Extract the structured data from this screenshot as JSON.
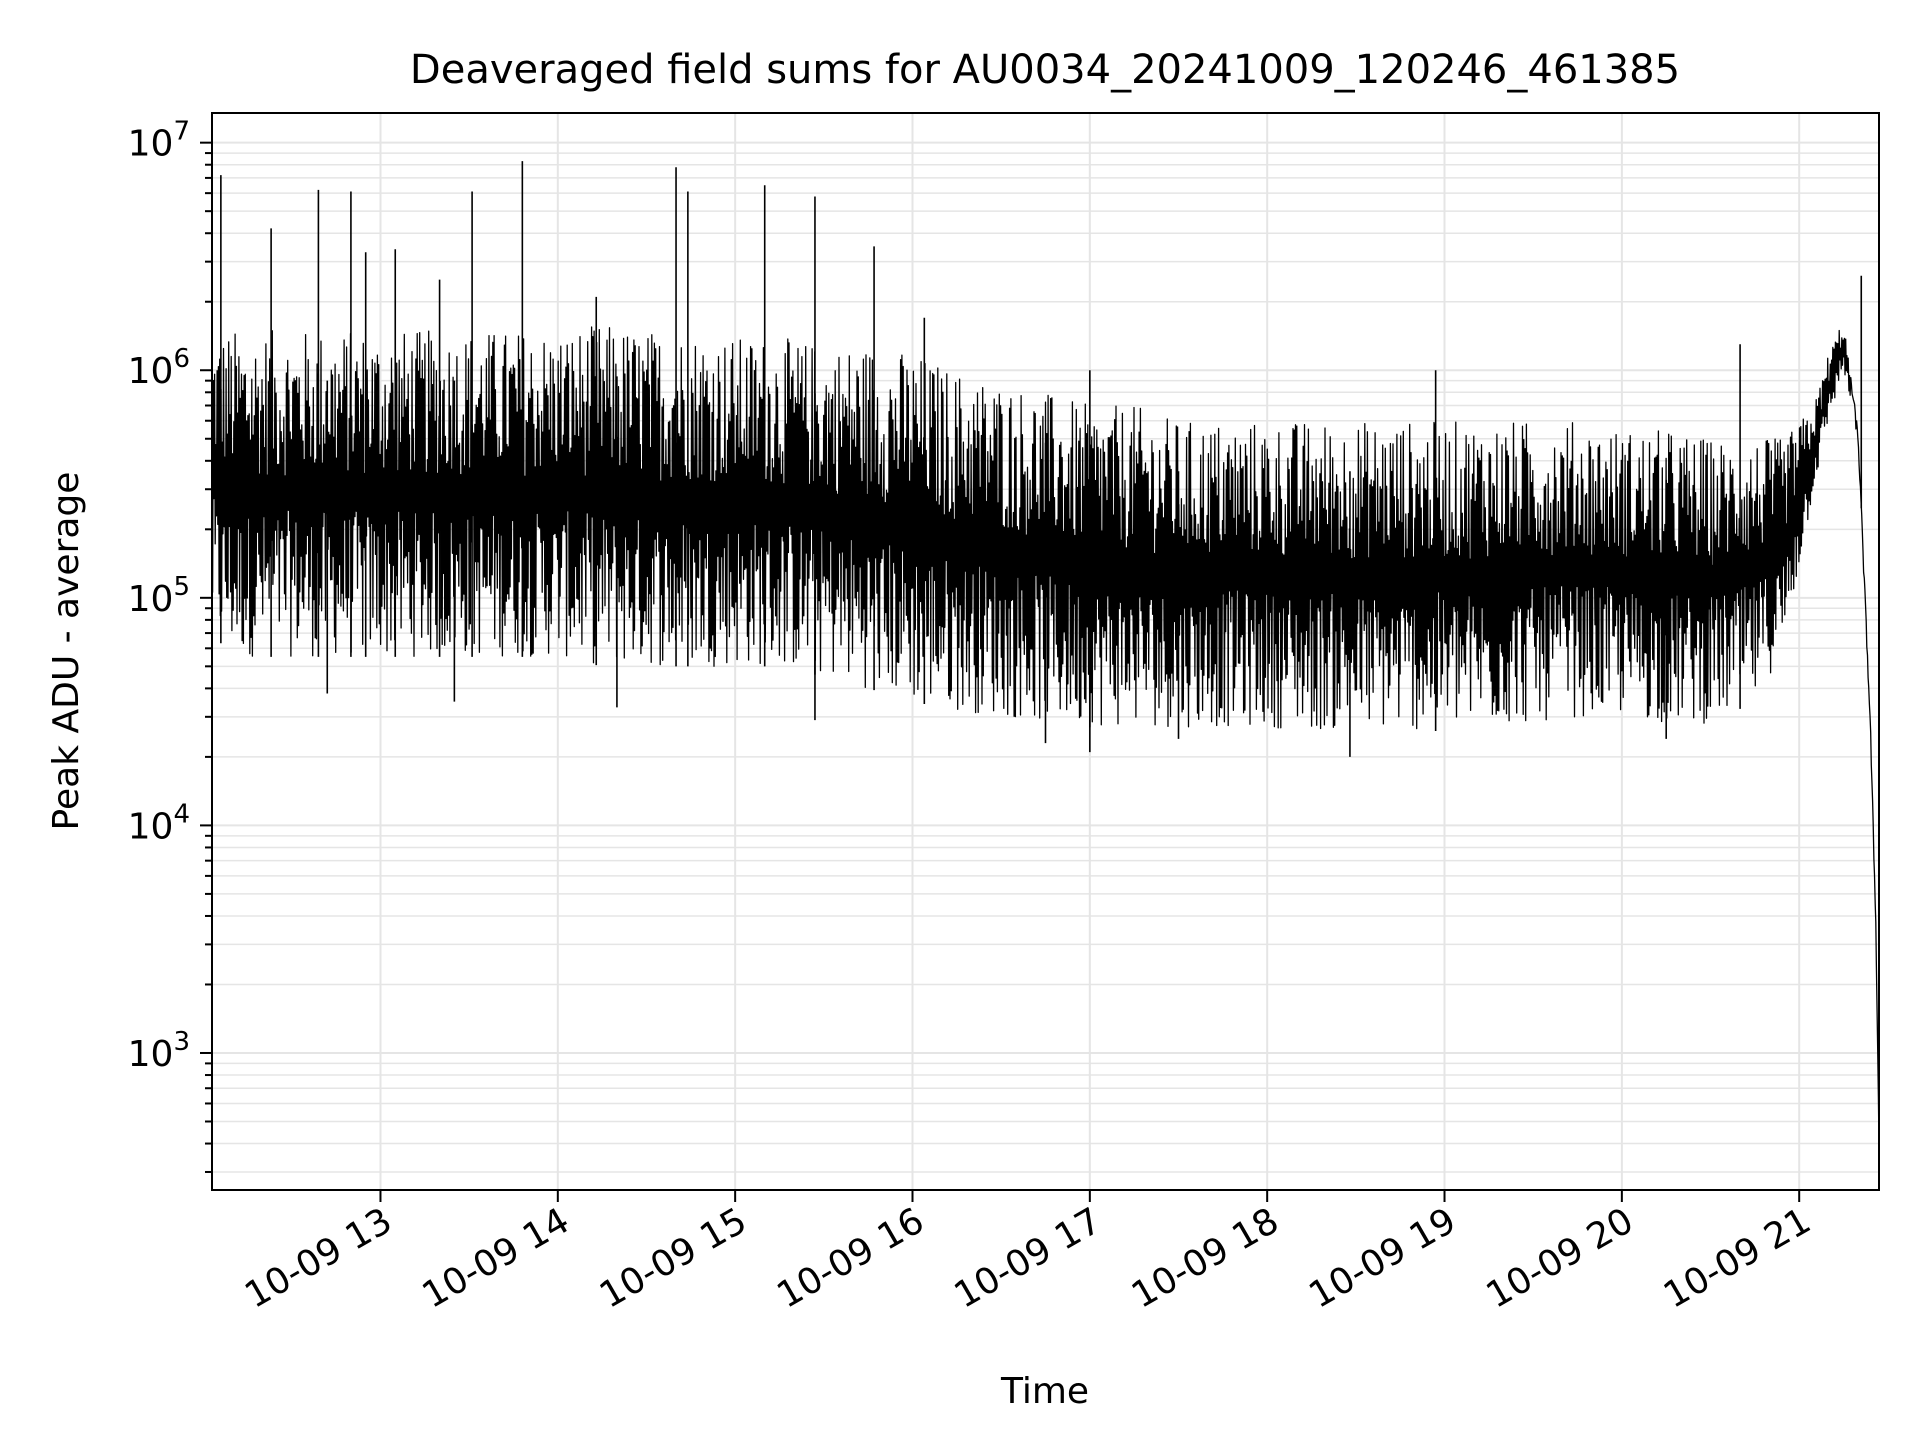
{
  "chart_data": {
    "type": "line",
    "title": "Deaveraged field sums for AU0034_20241009_120246_461385",
    "xlabel": "Time",
    "ylabel": "Peak ADU - average",
    "y_scale": "log",
    "ylim": [
      250,
      13500000
    ],
    "xlim": [
      "2024-10-09 12:03",
      "2024-10-09 21:27"
    ],
    "x_ticks": [
      {
        "label": "10-09 13",
        "value": "2024-10-09 13:00"
      },
      {
        "label": "10-09 14",
        "value": "2024-10-09 14:00"
      },
      {
        "label": "10-09 15",
        "value": "2024-10-09 15:00"
      },
      {
        "label": "10-09 16",
        "value": "2024-10-09 16:00"
      },
      {
        "label": "10-09 17",
        "value": "2024-10-09 17:00"
      },
      {
        "label": "10-09 18",
        "value": "2024-10-09 18:00"
      },
      {
        "label": "10-09 19",
        "value": "2024-10-09 19:00"
      },
      {
        "label": "10-09 20",
        "value": "2024-10-09 20:00"
      },
      {
        "label": "10-09 21",
        "value": "2024-10-09 21:00"
      }
    ],
    "y_ticks": [
      {
        "base": "10",
        "exp": "3",
        "value": 1000
      },
      {
        "base": "10",
        "exp": "4",
        "value": 10000
      },
      {
        "base": "10",
        "exp": "5",
        "value": 100000
      },
      {
        "base": "10",
        "exp": "6",
        "value": 1000000
      },
      {
        "base": "10",
        "exp": "7",
        "value": 10000000
      }
    ],
    "grid": true,
    "line_color": "#000000",
    "grid_color": "#e5e5e5",
    "series": [
      {
        "x": [
          "2024-10-09 12:03",
          "2024-10-09 12:10",
          "2024-10-09 12:20",
          "2024-10-09 12:30",
          "2024-10-09 12:45",
          "2024-10-09 13:00",
          "2024-10-09 13:15",
          "2024-10-09 13:30",
          "2024-10-09 13:45",
          "2024-10-09 14:00",
          "2024-10-09 14:15",
          "2024-10-09 14:30",
          "2024-10-09 14:45",
          "2024-10-09 15:00",
          "2024-10-09 15:15",
          "2024-10-09 15:30",
          "2024-10-09 15:45",
          "2024-10-09 16:00",
          "2024-10-09 16:15",
          "2024-10-09 16:30",
          "2024-10-09 16:45",
          "2024-10-09 17:00",
          "2024-10-09 17:15",
          "2024-10-09 17:30",
          "2024-10-09 17:45",
          "2024-10-09 18:00",
          "2024-10-09 18:15",
          "2024-10-09 18:30",
          "2024-10-09 18:45",
          "2024-10-09 19:00",
          "2024-10-09 19:15",
          "2024-10-09 19:30",
          "2024-10-09 19:45",
          "2024-10-09 20:00",
          "2024-10-09 20:15",
          "2024-10-09 20:30",
          "2024-10-09 20:45",
          "2024-10-09 20:55",
          "2024-10-09 21:05",
          "2024-10-09 21:10",
          "2024-10-09 21:15",
          "2024-10-09 21:20",
          "2024-10-09 21:24",
          "2024-10-09 21:26",
          "2024-10-09 21:27"
        ],
        "upper": [
          1500000,
          1500000,
          1500000,
          1500000,
          1500000,
          1500000,
          1500000,
          1500000,
          1500000,
          1500000,
          1600000,
          1500000,
          1500000,
          1400000,
          1400000,
          1300000,
          1300000,
          1200000,
          1000000,
          900000,
          800000,
          700000,
          700000,
          600000,
          600000,
          600000,
          600000,
          600000,
          600000,
          600000,
          600000,
          600000,
          600000,
          550000,
          550000,
          500000,
          500000,
          500000,
          700000,
          1200000,
          1700000,
          500000,
          30000,
          3500,
          400
        ],
        "lower": [
          70000,
          55000,
          55000,
          55000,
          55000,
          55000,
          55000,
          55000,
          55000,
          55000,
          50000,
          50000,
          50000,
          50000,
          50000,
          45000,
          40000,
          35000,
          32000,
          30000,
          28000,
          27000,
          27000,
          27000,
          27000,
          27000,
          26000,
          26000,
          26000,
          26000,
          27000,
          28000,
          30000,
          30000,
          28000,
          28000,
          35000,
          60000,
          300000,
          600000,
          1000000,
          500000,
          30000,
          3500,
          400
        ]
      }
    ],
    "spikes": [
      {
        "x": "2024-10-09 12:06",
        "y": 7200000
      },
      {
        "x": "2024-10-09 12:23",
        "y": 4200000
      },
      {
        "x": "2024-10-09 12:39",
        "y": 6200000
      },
      {
        "x": "2024-10-09 12:50",
        "y": 6100000
      },
      {
        "x": "2024-10-09 12:55",
        "y": 3300000
      },
      {
        "x": "2024-10-09 13:05",
        "y": 3400000
      },
      {
        "x": "2024-10-09 13:20",
        "y": 2500000
      },
      {
        "x": "2024-10-09 13:31",
        "y": 6100000
      },
      {
        "x": "2024-10-09 13:48",
        "y": 8300000
      },
      {
        "x": "2024-10-09 14:13",
        "y": 2100000
      },
      {
        "x": "2024-10-09 14:40",
        "y": 7800000
      },
      {
        "x": "2024-10-09 14:44",
        "y": 6100000
      },
      {
        "x": "2024-10-09 15:10",
        "y": 6500000
      },
      {
        "x": "2024-10-09 15:27",
        "y": 5800000
      },
      {
        "x": "2024-10-09 15:47",
        "y": 3500000
      },
      {
        "x": "2024-10-09 16:04",
        "y": 1700000
      },
      {
        "x": "2024-10-09 17:00",
        "y": 1000000
      },
      {
        "x": "2024-10-09 18:57",
        "y": 1000000
      },
      {
        "x": "2024-10-09 20:40",
        "y": 1300000
      },
      {
        "x": "2024-10-09 21:21",
        "y": 2600000
      }
    ],
    "dips": [
      {
        "x": "2024-10-09 12:42",
        "y": 38000
      },
      {
        "x": "2024-10-09 13:25",
        "y": 35000
      },
      {
        "x": "2024-10-09 14:20",
        "y": 33000
      },
      {
        "x": "2024-10-09 15:27",
        "y": 29000
      },
      {
        "x": "2024-10-09 16:45",
        "y": 23000
      },
      {
        "x": "2024-10-09 17:00",
        "y": 21000
      },
      {
        "x": "2024-10-09 17:30",
        "y": 24000
      },
      {
        "x": "2024-10-09 18:28",
        "y": 20000
      },
      {
        "x": "2024-10-09 20:15",
        "y": 24000
      }
    ]
  }
}
